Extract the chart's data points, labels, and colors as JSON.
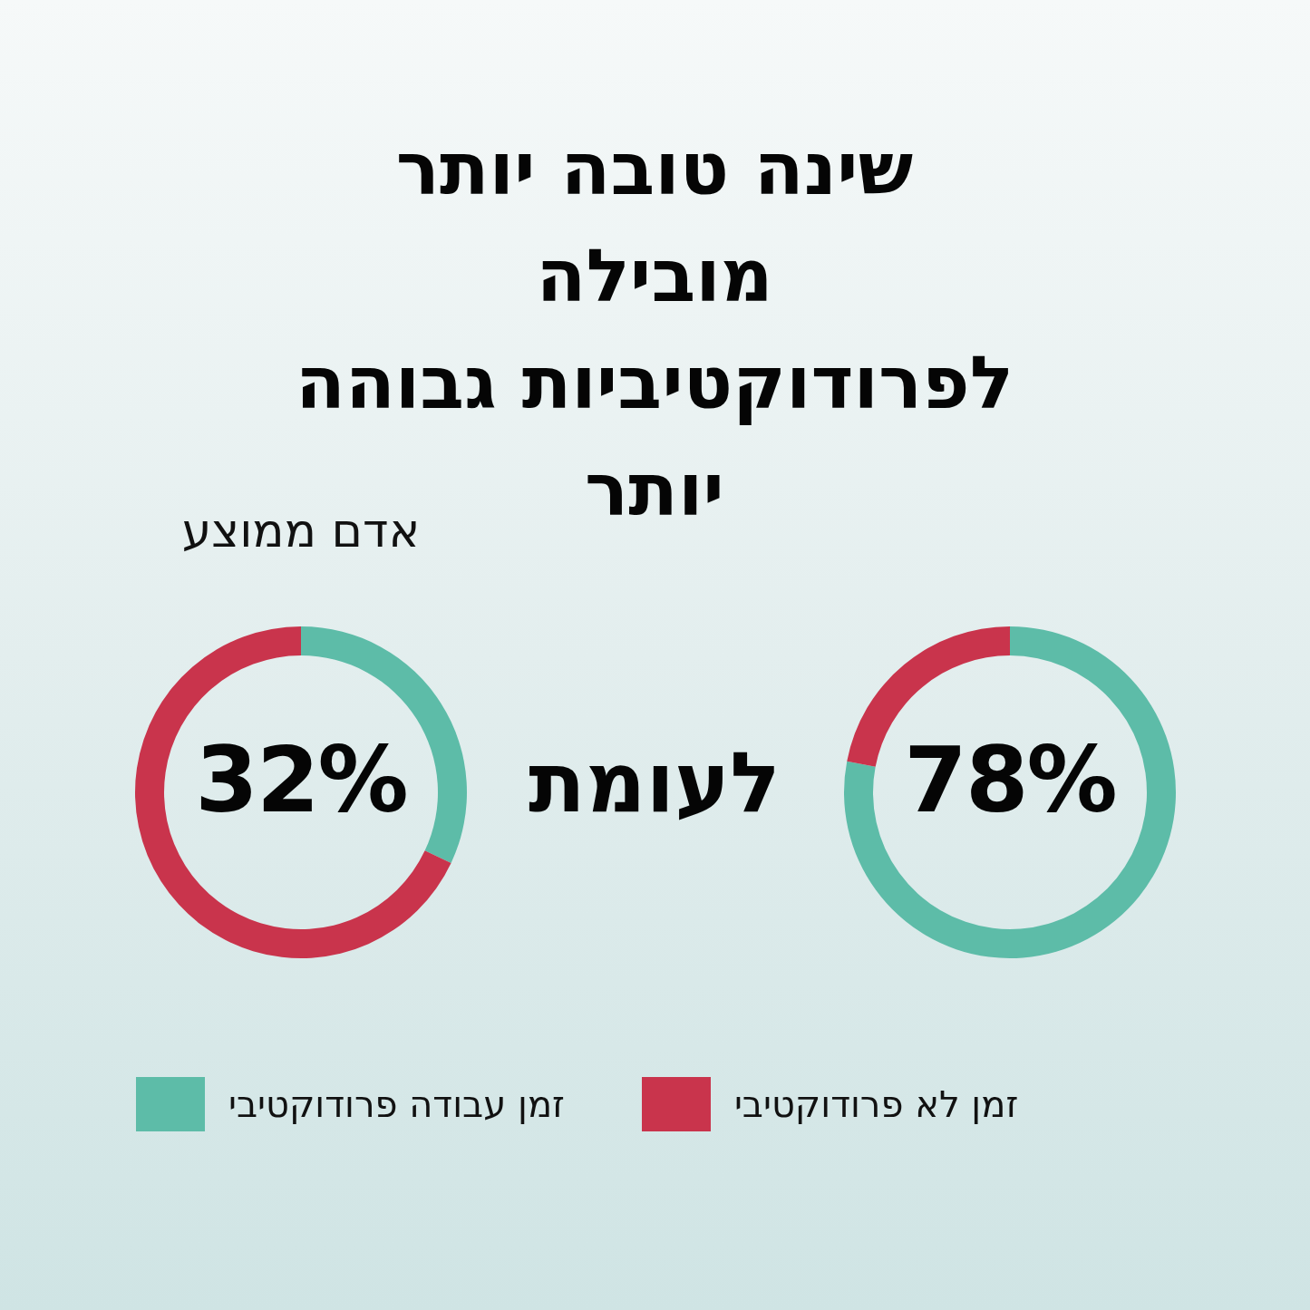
{
  "chart_data": [
    {
      "type": "donut",
      "title": "שינה טובה יותר מובילה לפרודוקטיביות גבוהה יותר",
      "categories": [
        "זמן עבודה פרודוקטיבי",
        "זמן לא פרודוקטיבי"
      ],
      "values": [
        78,
        22
      ],
      "colors": [
        "#5dbca8",
        "#c9344c"
      ],
      "legend": "bottom",
      "annotations": [
        "78%",
        "לעומת"
      ]
    },
    {
      "type": "donut",
      "title": "אדם ממוצע",
      "categories": [
        null,
        null
      ],
      "values": [
        32,
        68
      ],
      "colors": [
        "#5dbca8",
        "#c9344c"
      ],
      "annotations": [
        "32%"
      ]
    }
  ]
}
